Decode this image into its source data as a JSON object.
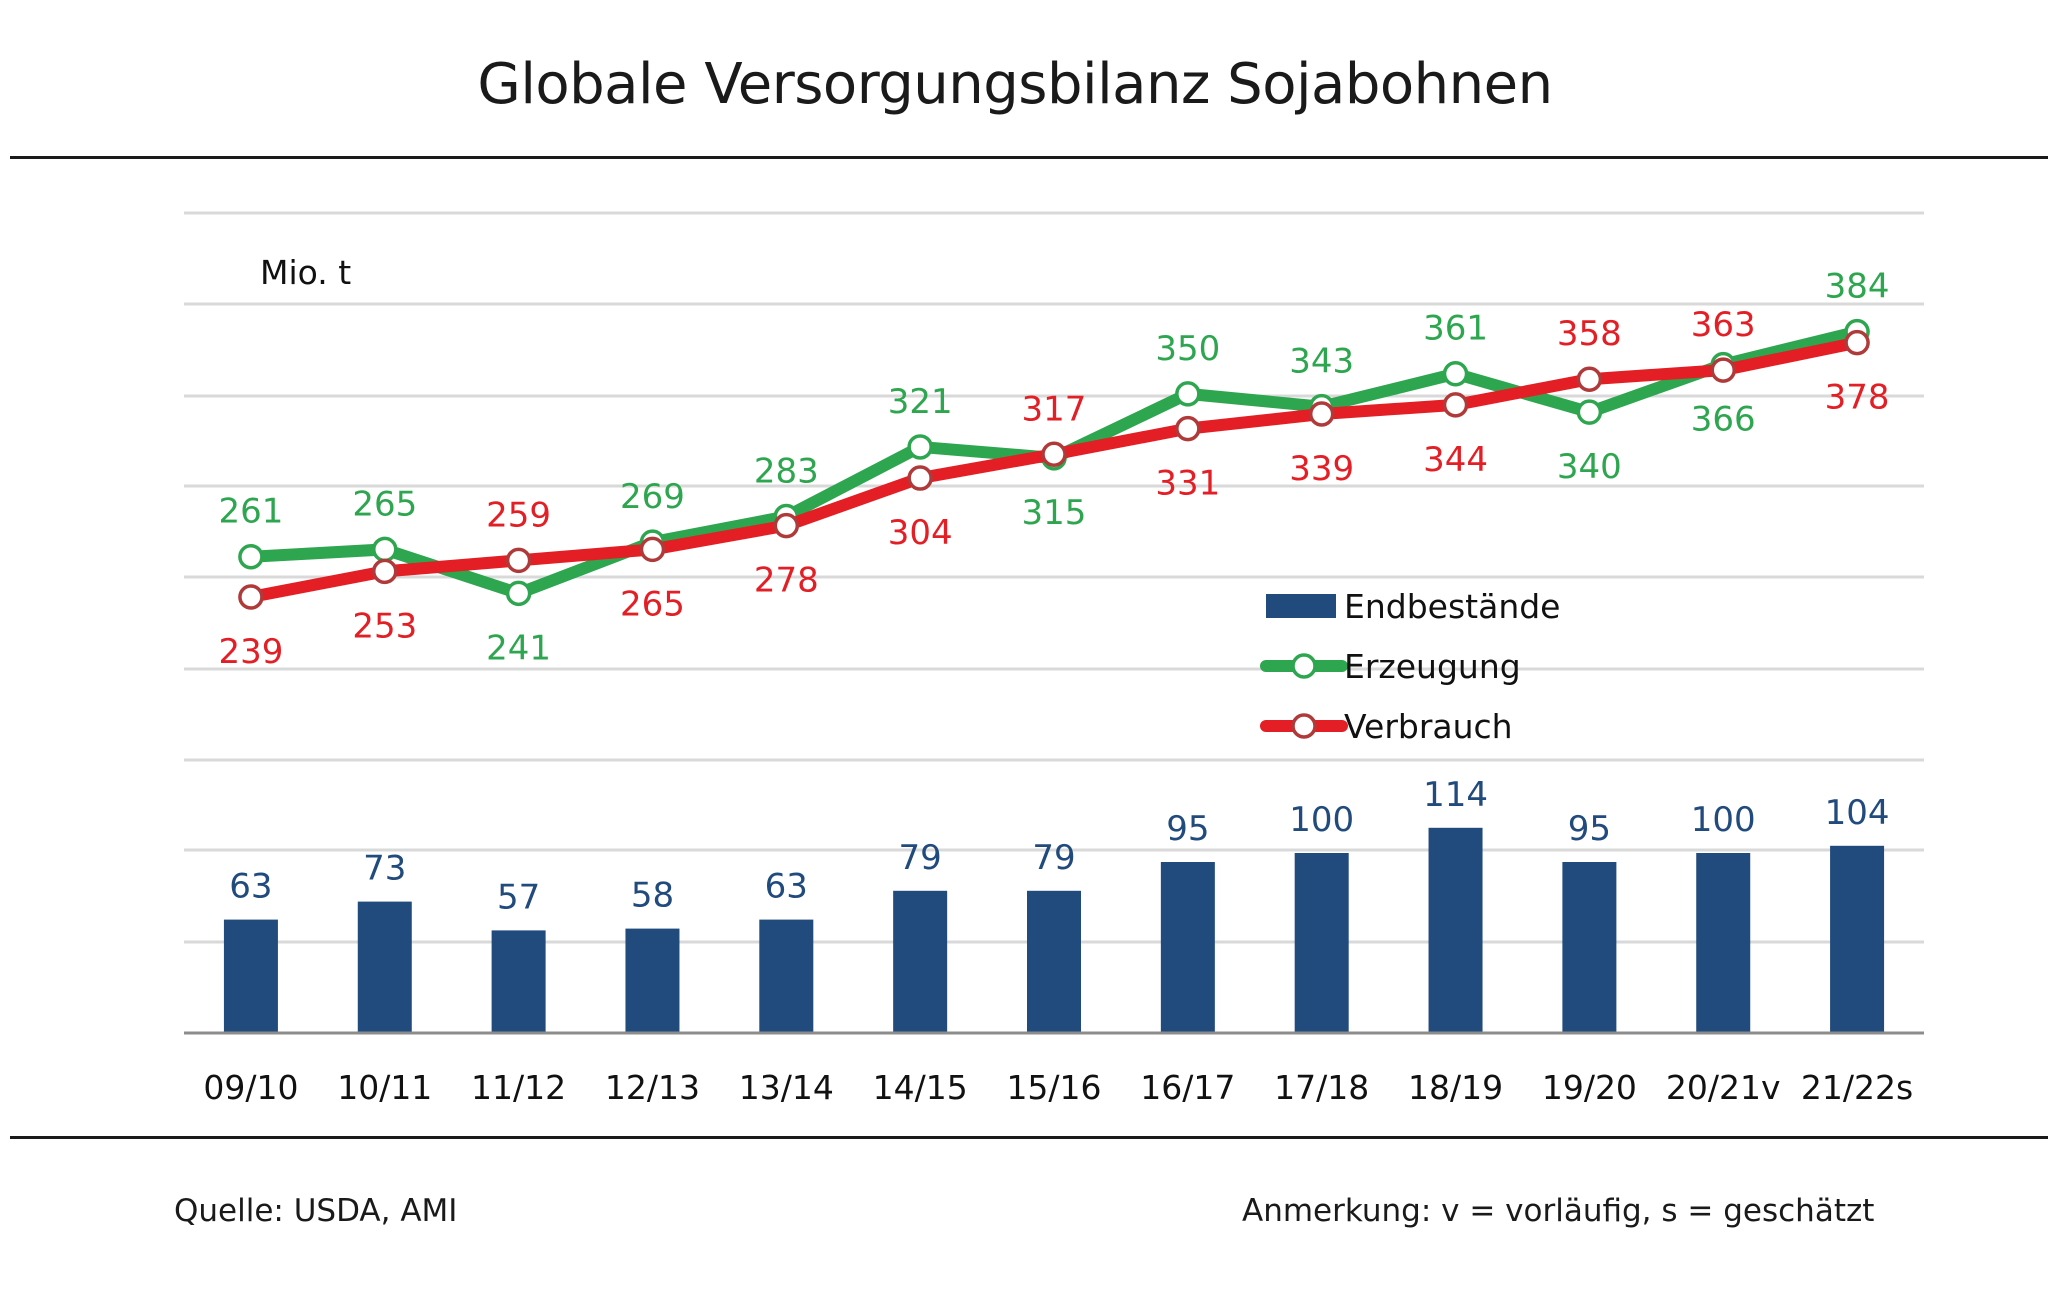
{
  "chart_data": {
    "type": "bar+line",
    "title": "Globale Versorgungsbilanz Sojabohnen",
    "ylabel": "Mio. t",
    "xlabel": "",
    "categories": [
      "09/10",
      "10/11",
      "11/12",
      "12/13",
      "13/14",
      "14/15",
      "15/16",
      "16/17",
      "17/18",
      "18/19",
      "19/20",
      "20/21v",
      "21/22s"
    ],
    "series": [
      {
        "name": "Endbestände",
        "type": "bar",
        "color": "#214a7d",
        "values": [
          63,
          73,
          57,
          58,
          63,
          79,
          79,
          95,
          100,
          114,
          95,
          100,
          104
        ],
        "label_positions": [
          "above",
          "above",
          "above",
          "above",
          "above",
          "above",
          "above",
          "above",
          "above",
          "above",
          "above",
          "above",
          "above"
        ]
      },
      {
        "name": "Erzeugung",
        "type": "line",
        "color": "#2ea64f",
        "marker": "open-circle",
        "values": [
          261,
          265,
          241,
          269,
          283,
          321,
          315,
          350,
          343,
          361,
          340,
          366,
          384
        ],
        "label_positions": [
          "above",
          "above",
          "below",
          "above",
          "above",
          "above",
          "below",
          "above",
          "above",
          "above",
          "below",
          "below",
          "above"
        ]
      },
      {
        "name": "Verbrauch",
        "type": "line",
        "color": "#e31e24",
        "marker": "open-circle",
        "values": [
          239,
          253,
          259,
          265,
          278,
          304,
          317,
          331,
          339,
          344,
          358,
          363,
          378
        ],
        "label_positions": [
          "below",
          "below",
          "above",
          "below",
          "below",
          "below",
          "above",
          "below",
          "below",
          "below",
          "above",
          "above",
          "below"
        ]
      }
    ],
    "grid": true,
    "y_axis_visible": false,
    "legend": {
      "placement": "center-right",
      "entries": [
        "Endbestände",
        "Erzeugung",
        "Verbrauch"
      ]
    }
  },
  "header": {
    "title": "Globale Versorgungsbilanz Sojabohnen"
  },
  "footer": {
    "source": "Quelle: USDA, AMI",
    "note": "Anmerkung: v = vorläufig, s = geschätzt"
  },
  "colors": {
    "bar": "#214a7d",
    "production": "#2ea64f",
    "consumption": "#e31e24",
    "consumption_marker_edge": "#b03a3a",
    "grid": "#d9d9d9",
    "axis": "#8c8c8c"
  }
}
